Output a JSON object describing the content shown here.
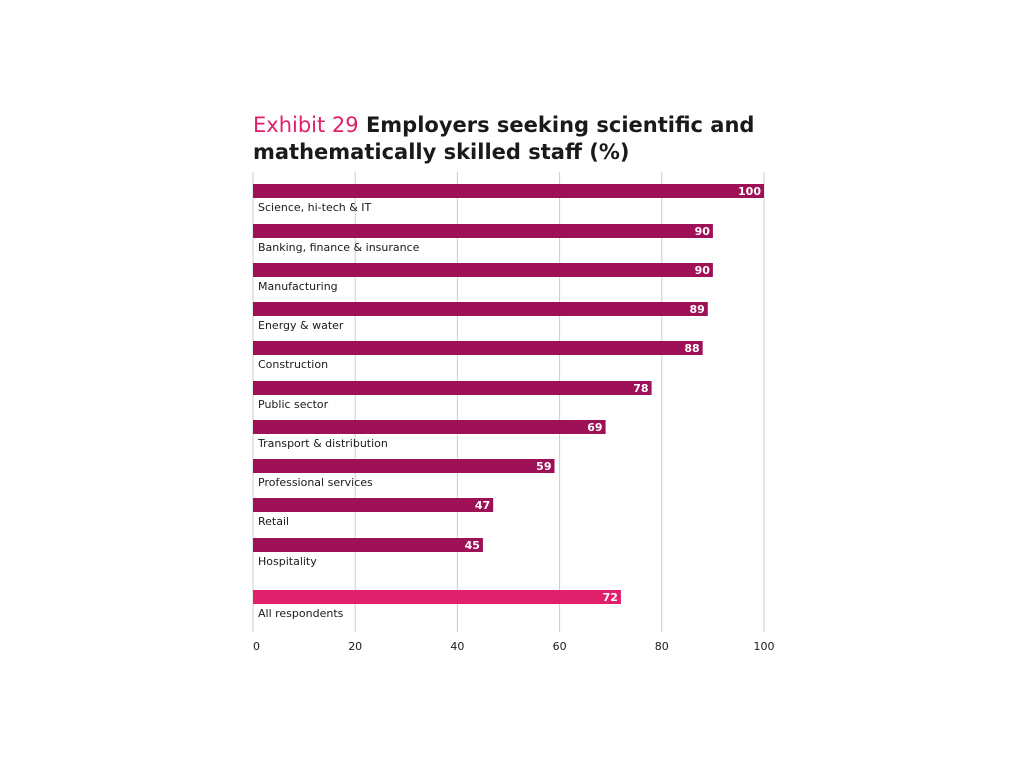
{
  "chart_data": {
    "type": "bar",
    "orientation": "horizontal",
    "title_prefix": "Exhibit 29",
    "title": "Employers seeking scientific and mathematically skilled staff (%)",
    "categories": [
      "Science, hi-tech & IT",
      "Banking, finance & insurance",
      "Manufacturing",
      "Energy & water",
      "Construction",
      "Public sector",
      "Transport & distribution",
      "Professional services",
      "Retail",
      "Hospitality",
      "All respondents"
    ],
    "values": [
      100,
      90,
      90,
      89,
      88,
      78,
      69,
      59,
      47,
      45,
      72
    ],
    "xlim": [
      0,
      100
    ],
    "xticks": [
      "0",
      "20",
      "40",
      "60",
      "80",
      "100"
    ],
    "grid": true,
    "colors": {
      "bar": "#9e1157",
      "total_bar": "#e0206a",
      "title_prefix": "#e0206a",
      "grid": "#cccccc"
    }
  }
}
